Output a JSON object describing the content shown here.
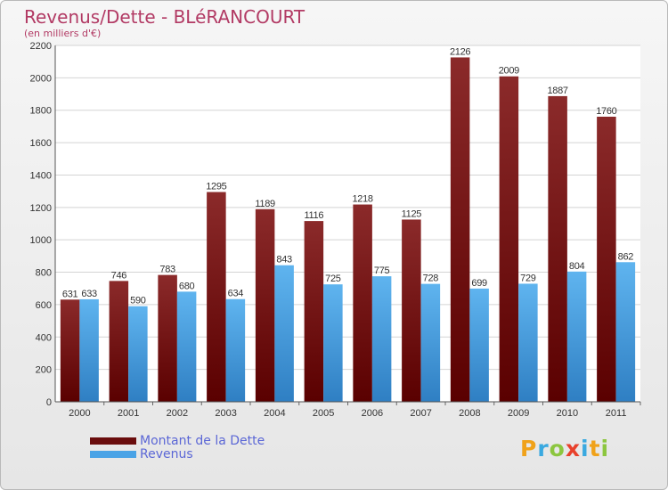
{
  "title": "Revenus/Dette - BLéRANCOURT",
  "subtitle": "(en milliers d'€)",
  "colors": {
    "title": "#b23a64",
    "dette_top": "#8b2a2a",
    "dette_bottom": "#5a0000",
    "revenus_top": "#5fb4ef",
    "revenus_bottom": "#2f7fc3",
    "legend_text": "#5b67d6"
  },
  "chart_data": {
    "type": "bar",
    "categories": [
      "2000",
      "2001",
      "2002",
      "2003",
      "2004",
      "2005",
      "2006",
      "2007",
      "2008",
      "2009",
      "2010",
      "2011"
    ],
    "series": [
      {
        "name": "Montant de la Dette",
        "values": [
          631,
          746,
          783,
          1295,
          1189,
          1116,
          1218,
          1125,
          2126,
          2009,
          1887,
          1760
        ]
      },
      {
        "name": "Revenus",
        "values": [
          633,
          590,
          680,
          634,
          843,
          725,
          775,
          728,
          699,
          729,
          804,
          862
        ]
      }
    ],
    "yticks": [
      0,
      200,
      400,
      600,
      800,
      1000,
      1200,
      1400,
      1600,
      1800,
      2000,
      2200
    ],
    "ylim": [
      0,
      2200
    ],
    "grid": true,
    "legend_position": "bottom-left"
  },
  "legend": {
    "items": [
      {
        "label": "Montant de la Dette",
        "swatch_color": "#6a0d0d"
      },
      {
        "label": "Revenus",
        "swatch_color": "#4aa3e6"
      }
    ]
  },
  "logo": {
    "letters": [
      "P",
      "r",
      "o",
      "x",
      "i",
      "t",
      "i"
    ],
    "colors": [
      "#f0a21a",
      "#3aa9e0",
      "#8cc63f",
      "#e8412c",
      "#3aa9e0",
      "#f0a21a",
      "#8cc63f"
    ]
  }
}
